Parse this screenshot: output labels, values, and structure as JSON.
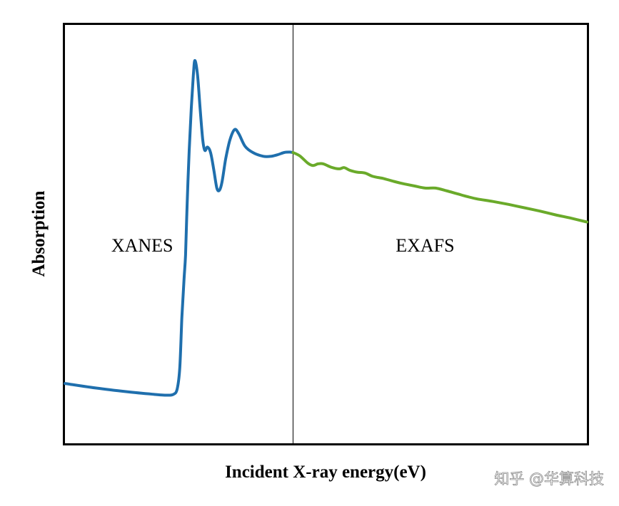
{
  "chart_data": {
    "type": "line",
    "xlabel": "Incident X-ray energy(eV)",
    "ylabel": "Absorption",
    "grid": false,
    "legend": "none",
    "xlim": [
      0,
      100
    ],
    "ylim": [
      0,
      100
    ],
    "divider_x": 43.7,
    "region_labels": [
      {
        "text": "XANES",
        "x": 14.8,
        "y": 45.8
      },
      {
        "text": "EXAFS",
        "x": 69.0,
        "y": 45.8
      }
    ],
    "series": [
      {
        "color": "#1f6fad",
        "region": "XANES",
        "points": [
          [
            0,
            14.3
          ],
          [
            6,
            13.2
          ],
          [
            12,
            12.3
          ],
          [
            17,
            11.7
          ],
          [
            19.5,
            11.5
          ],
          [
            20.8,
            11.7
          ],
          [
            21.5,
            13.0
          ],
          [
            22.0,
            18.0
          ],
          [
            22.4,
            30.0
          ],
          [
            22.8,
            39.0
          ],
          [
            23.1,
            45.0
          ],
          [
            23.4,
            57.0
          ],
          [
            23.8,
            70.0
          ],
          [
            24.2,
            80.0
          ],
          [
            24.6,
            88.0
          ],
          [
            24.9,
            91.5
          ],
          [
            25.4,
            88.0
          ],
          [
            25.9,
            80.0
          ],
          [
            26.4,
            72.5
          ],
          [
            26.8,
            70.0
          ],
          [
            27.3,
            70.8
          ],
          [
            27.9,
            69.5
          ],
          [
            28.5,
            65.5
          ],
          [
            29.1,
            61.0
          ],
          [
            29.6,
            60.5
          ],
          [
            30.1,
            62.5
          ],
          [
            30.8,
            68.0
          ],
          [
            31.6,
            72.5
          ],
          [
            32.5,
            75.0
          ],
          [
            33.3,
            74.0
          ],
          [
            34.5,
            71.0
          ],
          [
            36.0,
            69.5
          ],
          [
            38.0,
            68.6
          ],
          [
            39.5,
            68.6
          ],
          [
            40.8,
            69.0
          ],
          [
            42.0,
            69.5
          ],
          [
            43.0,
            69.6
          ],
          [
            43.7,
            69.5
          ]
        ]
      },
      {
        "color": "#6aaa2a",
        "region": "EXAFS",
        "points": [
          [
            43.7,
            69.5
          ],
          [
            45.0,
            68.7
          ],
          [
            46.5,
            67.0
          ],
          [
            47.5,
            66.4
          ],
          [
            48.5,
            66.8
          ],
          [
            49.5,
            66.8
          ],
          [
            51.0,
            66.0
          ],
          [
            52.5,
            65.6
          ],
          [
            53.5,
            65.9
          ],
          [
            54.5,
            65.3
          ],
          [
            56.0,
            64.8
          ],
          [
            57.5,
            64.6
          ],
          [
            59.0,
            63.8
          ],
          [
            61.0,
            63.3
          ],
          [
            63.0,
            62.6
          ],
          [
            65.0,
            62.0
          ],
          [
            67.0,
            61.5
          ],
          [
            69.0,
            61.0
          ],
          [
            71.0,
            61.0
          ],
          [
            73.0,
            60.4
          ],
          [
            75.0,
            59.7
          ],
          [
            77.0,
            59.0
          ],
          [
            79.0,
            58.4
          ],
          [
            82.0,
            57.8
          ],
          [
            85.0,
            57.1
          ],
          [
            88.0,
            56.3
          ],
          [
            91.0,
            55.5
          ],
          [
            94.0,
            54.6
          ],
          [
            97.0,
            53.8
          ],
          [
            100.0,
            52.9
          ]
        ]
      }
    ]
  },
  "watermark": {
    "text": "知乎 @华算科技"
  }
}
